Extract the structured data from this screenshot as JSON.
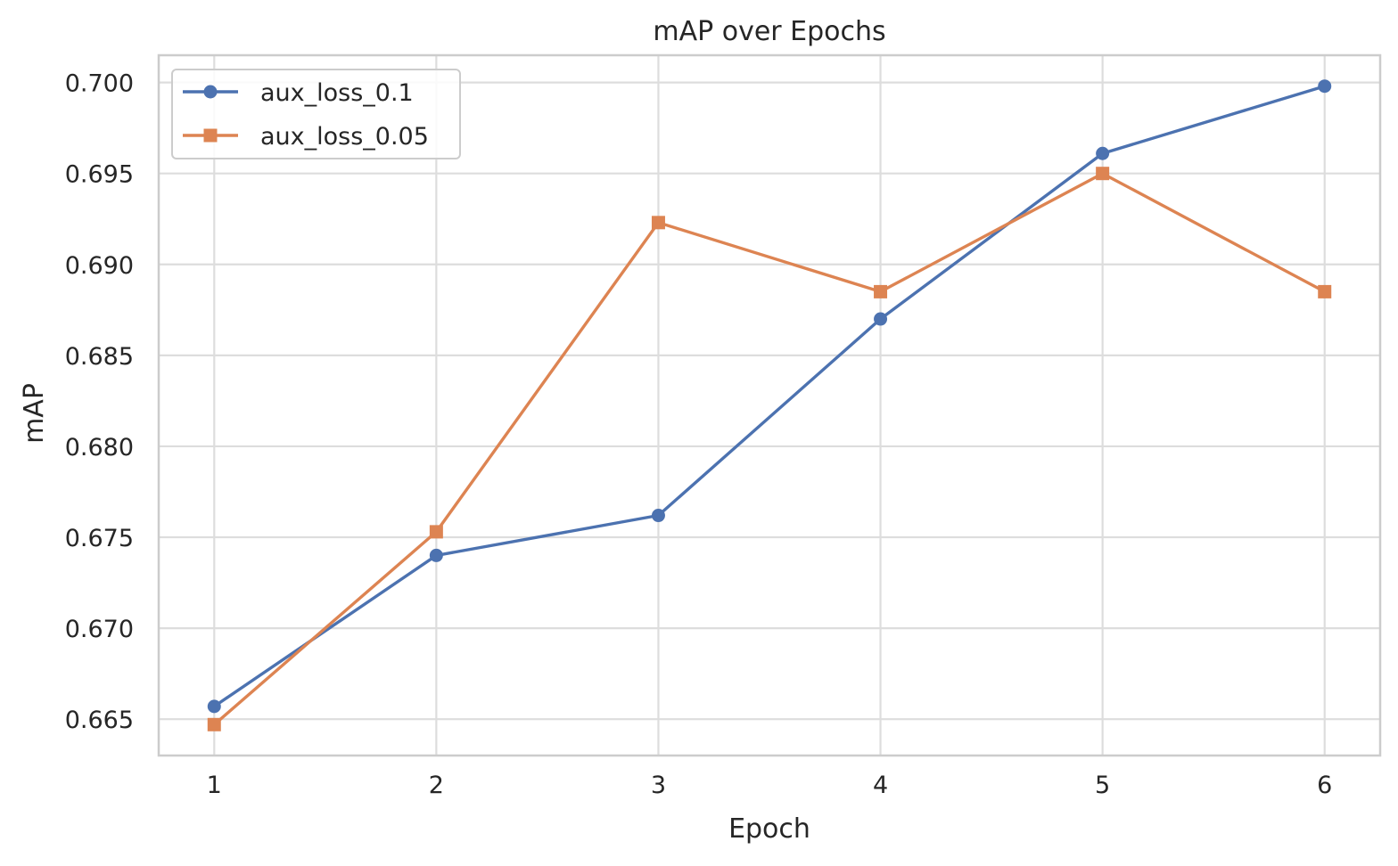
{
  "chart_data": {
    "type": "line",
    "title": "mAP over Epochs",
    "xlabel": "Epoch",
    "ylabel": "mAP",
    "x": [
      1,
      2,
      3,
      4,
      5,
      6
    ],
    "xlim": [
      0.75,
      6.25
    ],
    "ylim": [
      0.663,
      0.7015
    ],
    "xticks": [
      1,
      2,
      3,
      4,
      5,
      6
    ],
    "yticks": [
      0.665,
      0.67,
      0.675,
      0.68,
      0.685,
      0.69,
      0.695,
      0.7
    ],
    "ytick_labels": [
      "0.665",
      "0.670",
      "0.675",
      "0.680",
      "0.685",
      "0.690",
      "0.695",
      "0.700"
    ],
    "grid": true,
    "legend_position": "top-left",
    "series": [
      {
        "name": "aux_loss_0.1",
        "marker": "circle",
        "color": "#4c72b0",
        "values": [
          0.6657,
          0.674,
          0.6762,
          0.687,
          0.6961,
          0.6998
        ]
      },
      {
        "name": "aux_loss_0.05",
        "marker": "square",
        "color": "#dd8452",
        "values": [
          0.6647,
          0.6753,
          0.6923,
          0.6885,
          0.695,
          0.6885
        ]
      }
    ]
  }
}
